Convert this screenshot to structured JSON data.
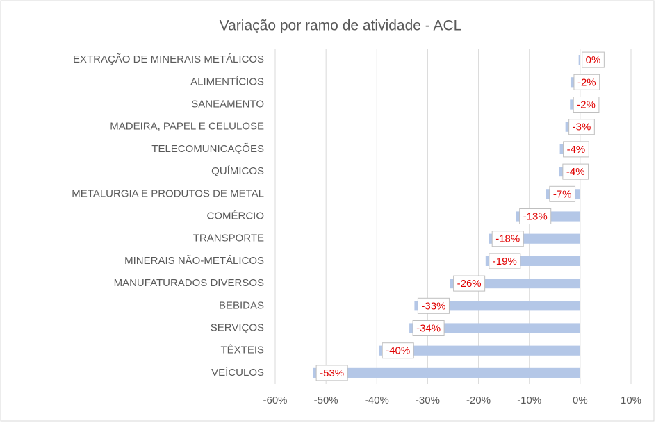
{
  "chart_data": {
    "type": "bar",
    "orientation": "horizontal",
    "title": "Variação por ramo de atividade - ACL",
    "categories": [
      "EXTRAÇÃO DE MINERAIS METÁLICOS",
      "ALIMENTÍCIOS",
      "SANEAMENTO",
      "MADEIRA, PAPEL E CELULOSE",
      "TELECOMUNICAÇÕES",
      "QUÍMICOS",
      "METALURGIA E PRODUTOS DE METAL",
      "COMÉRCIO",
      "TRANSPORTE",
      "MINERAIS NÃO-METÁLICOS",
      "MANUFATURADOS DIVERSOS",
      "BEBIDAS",
      "SERVIÇOS",
      "TÊXTEIS",
      "VEÍCULOS"
    ],
    "values": [
      -0.3,
      -1.9,
      -2.0,
      -2.9,
      -4.0,
      -4.1,
      -6.7,
      -12.6,
      -18.0,
      -18.6,
      -25.6,
      -32.6,
      -33.6,
      -39.6,
      -52.6
    ],
    "value_labels": [
      "0%",
      "-2%",
      "-2%",
      "-3%",
      "-4%",
      "-4%",
      "-7%",
      "-13%",
      "-18%",
      "-19%",
      "-26%",
      "-33%",
      "-34%",
      "-40%",
      "-53%"
    ],
    "color": "#b4c7e7",
    "label_color": "#e00000",
    "xlim": [
      -60,
      10
    ],
    "xticks": [
      {
        "value": -60,
        "label": "-60%"
      },
      {
        "value": -50,
        "label": "-50%"
      },
      {
        "value": -40,
        "label": "-40%"
      },
      {
        "value": -30,
        "label": "-30%"
      },
      {
        "value": -20,
        "label": "-20%"
      },
      {
        "value": -10,
        "label": "-10%"
      },
      {
        "value": 0,
        "label": "0%"
      },
      {
        "value": 10,
        "label": "10%"
      }
    ],
    "grid": true
  }
}
